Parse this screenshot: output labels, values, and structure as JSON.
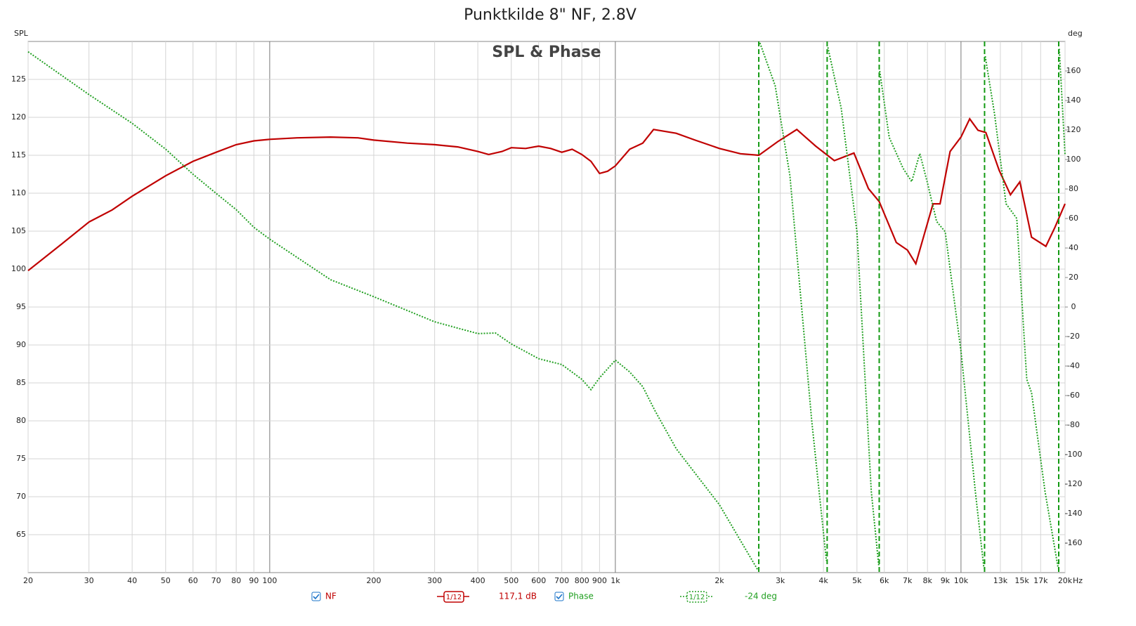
{
  "chart_data": {
    "type": "line",
    "title": "Punktkilde 8\" NF, 2.8V",
    "subtitle": "SPL & Phase",
    "y_label": "SPL",
    "y2_label": "deg",
    "x_unit": "Hz",
    "x_scale": "log",
    "grid": true,
    "xlim": [
      20,
      20000
    ],
    "ylim": [
      60,
      130
    ],
    "y2lim": [
      -180,
      180
    ],
    "xticks": [
      20,
      30,
      40,
      50,
      60,
      70,
      80,
      90,
      100,
      200,
      300,
      400,
      500,
      600,
      700,
      800,
      900,
      {
        "value": 1000,
        "label": "1k"
      },
      {
        "value": 2000,
        "label": "2k"
      },
      {
        "value": 3000,
        "label": "3k"
      },
      {
        "value": 4000,
        "label": "4k"
      },
      {
        "value": 5000,
        "label": "5k"
      },
      {
        "value": 6000,
        "label": "6k"
      },
      {
        "value": 7000,
        "label": "7k"
      },
      {
        "value": 8000,
        "label": "8k"
      },
      {
        "value": 9000,
        "label": "9k"
      },
      {
        "value": 10000,
        "label": "10k"
      },
      {
        "value": 13000,
        "label": "13k"
      },
      {
        "value": 15000,
        "label": "15k"
      },
      {
        "value": 17000,
        "label": "17k"
      },
      {
        "value": 20000,
        "label": "20k"
      }
    ],
    "yticks": [
      65,
      70,
      75,
      80,
      85,
      90,
      95,
      100,
      105,
      110,
      115,
      120,
      125
    ],
    "y2ticks": [
      -160,
      -140,
      -120,
      -100,
      -80,
      -60,
      -40,
      -20,
      0,
      20,
      40,
      60,
      80,
      100,
      120,
      140,
      160
    ],
    "series": [
      {
        "name": "NF",
        "color": "#c00000",
        "smoothing": "1/12",
        "readout": "117,1 dB",
        "x": [
          20,
          25,
          30,
          35,
          40,
          50,
          60,
          70,
          80,
          90,
          100,
          120,
          150,
          180,
          200,
          250,
          300,
          350,
          400,
          430,
          470,
          500,
          550,
          600,
          650,
          700,
          750,
          800,
          850,
          900,
          950,
          1000,
          1100,
          1200,
          1290,
          1500,
          1700,
          2000,
          2300,
          2600,
          2950,
          3350,
          3800,
          4300,
          4900,
          5400,
          5800,
          6500,
          7000,
          7400,
          8300,
          8700,
          9300,
          10000,
          10600,
          11200,
          11800,
          12900,
          13900,
          14800,
          16000,
          17600,
          18700,
          20000
        ],
        "values": [
          99.8,
          103.3,
          106.2,
          107.8,
          109.6,
          112.3,
          114.2,
          115.4,
          116.4,
          116.9,
          117.1,
          117.3,
          117.4,
          117.3,
          117.0,
          116.6,
          116.4,
          116.1,
          115.5,
          115.1,
          115.5,
          116.0,
          115.9,
          116.2,
          115.9,
          115.4,
          115.8,
          115.1,
          114.2,
          112.6,
          112.9,
          113.6,
          115.8,
          116.6,
          118.4,
          117.9,
          117.0,
          115.9,
          115.2,
          115.0,
          116.8,
          118.4,
          116.2,
          114.3,
          115.3,
          110.6,
          108.9,
          103.5,
          102.5,
          100.7,
          108.6,
          108.6,
          115.5,
          117.4,
          119.8,
          118.3,
          118.0,
          113.0,
          109.8,
          111.5,
          104.2,
          103.0,
          105.5,
          108.6
        ]
      },
      {
        "name": "Phase",
        "color": "#22a022",
        "axis": "y2",
        "smoothing": "1/12",
        "readout": "-24 deg",
        "x": [
          20,
          30,
          40,
          50,
          60,
          70,
          80,
          90,
          100,
          150,
          200,
          300,
          400,
          450,
          500,
          600,
          700,
          800,
          850,
          900,
          1000,
          1100,
          1200,
          1300,
          1500,
          2000,
          2580,
          2620,
          2900,
          3200,
          3700,
          4080,
          4120,
          4500,
          5000,
          5500,
          5780,
          5820,
          6200,
          6800,
          7200,
          7600,
          8000,
          8500,
          9000,
          10000,
          11000,
          11650,
          11750,
          12500,
          13500,
          14500,
          15500,
          16000,
          17500,
          19100,
          19250,
          20000
        ],
        "values": [
          173,
          144,
          124.5,
          107,
          90,
          77,
          66,
          54,
          46,
          18.5,
          7,
          -10,
          -18,
          -17.6,
          -25,
          -35,
          -39,
          -49,
          -56,
          -48,
          -36,
          -44,
          -54,
          -70,
          -96,
          -134,
          -178,
          179,
          150,
          89,
          -77,
          -172,
          176,
          135,
          51,
          -125,
          -175,
          160,
          115,
          94,
          85,
          104,
          84,
          58,
          51,
          -30,
          -125,
          -177,
          170,
          131,
          70,
          60,
          -49,
          -58,
          -125,
          -177,
          175,
          103
        ]
      }
    ]
  }
}
